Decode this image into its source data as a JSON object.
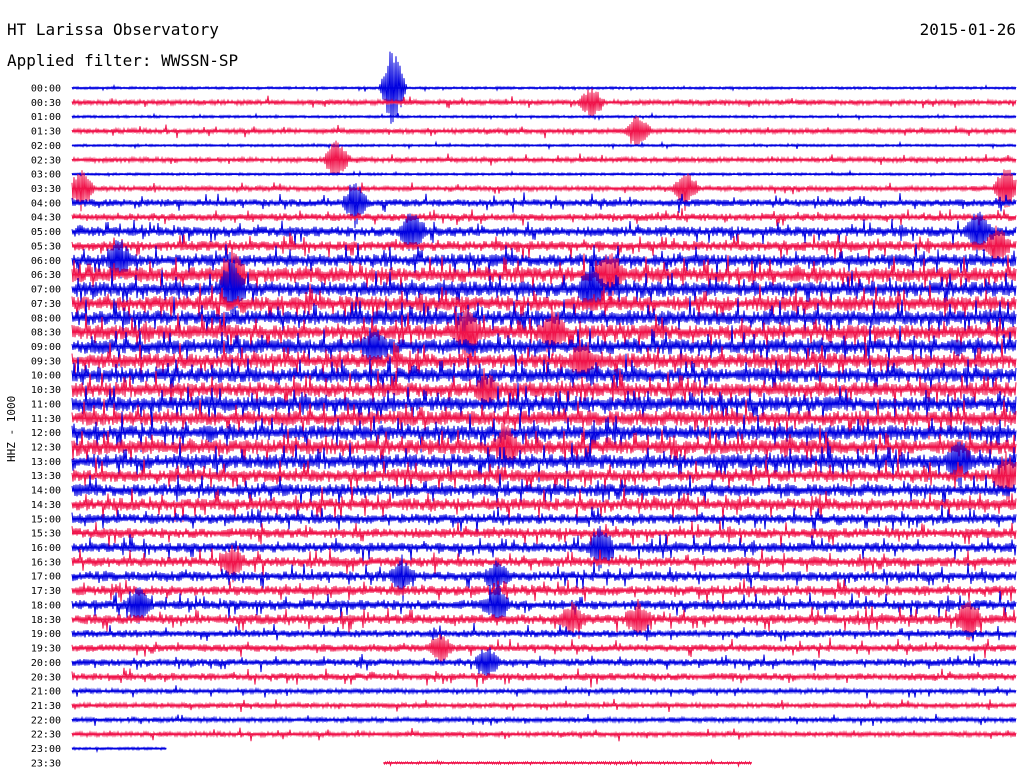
{
  "header": {
    "station": "HT Larissa Observatory",
    "date": "2015-01-26",
    "filter": "Applied filter: WWSSN-SP"
  },
  "chart_data": {
    "type": "line",
    "ylabel": "HHZ - 1000",
    "rows": [
      "00:00",
      "00:30",
      "01:00",
      "01:30",
      "02:00",
      "02:30",
      "03:00",
      "03:30",
      "04:00",
      "04:30",
      "05:00",
      "05:30",
      "06:00",
      "06:30",
      "07:00",
      "07:30",
      "08:00",
      "08:30",
      "09:00",
      "09:30",
      "10:00",
      "10:30",
      "11:00",
      "11:30",
      "12:00",
      "12:30",
      "13:00",
      "13:30",
      "14:00",
      "14:30",
      "15:00",
      "15:30",
      "16:00",
      "16:30",
      "17:00",
      "17:30",
      "18:00",
      "18:30",
      "19:00",
      "19:30",
      "20:00",
      "20:30",
      "21:00",
      "21:30",
      "22:00",
      "22:30",
      "23:00",
      "23:30"
    ],
    "colors": [
      "#0000e0",
      "#f0134a"
    ],
    "noise_level": [
      1,
      2,
      1,
      2,
      1,
      2,
      1,
      2,
      3,
      3,
      4,
      4,
      5,
      6,
      6,
      6,
      6,
      6,
      6,
      6,
      6,
      6,
      6,
      6,
      6,
      6,
      6,
      5,
      5,
      5,
      4,
      4,
      4,
      4,
      4,
      4,
      4,
      4,
      3,
      3,
      3,
      3,
      2,
      2,
      2,
      2,
      1,
      1
    ],
    "events": [
      {
        "row": 0,
        "t": 0.34,
        "amp": 3.0
      },
      {
        "row": 1,
        "t": 0.55,
        "amp": 1.0
      },
      {
        "row": 3,
        "t": 0.6,
        "amp": 1.2
      },
      {
        "row": 5,
        "t": 0.28,
        "amp": 1.4
      },
      {
        "row": 7,
        "t": 0.01,
        "amp": 1.5
      },
      {
        "row": 7,
        "t": 0.65,
        "amp": 1.2
      },
      {
        "row": 7,
        "t": 0.99,
        "amp": 1.6
      },
      {
        "row": 8,
        "t": 0.3,
        "amp": 1.5
      },
      {
        "row": 10,
        "t": 0.36,
        "amp": 1.4
      },
      {
        "row": 10,
        "t": 0.96,
        "amp": 1.5
      },
      {
        "row": 11,
        "t": 0.98,
        "amp": 1.2
      },
      {
        "row": 12,
        "t": 0.05,
        "amp": 1.3
      },
      {
        "row": 13,
        "t": 0.17,
        "amp": 1.8
      },
      {
        "row": 13,
        "t": 0.57,
        "amp": 1.6
      },
      {
        "row": 14,
        "t": 0.17,
        "amp": 2.0
      },
      {
        "row": 14,
        "t": 0.55,
        "amp": 1.6
      },
      {
        "row": 17,
        "t": 0.42,
        "amp": 1.8
      },
      {
        "row": 17,
        "t": 0.51,
        "amp": 1.4
      },
      {
        "row": 18,
        "t": 0.32,
        "amp": 1.2
      },
      {
        "row": 19,
        "t": 0.54,
        "amp": 1.2
      },
      {
        "row": 21,
        "t": 0.44,
        "amp": 1.0
      },
      {
        "row": 25,
        "t": 0.46,
        "amp": 1.2
      },
      {
        "row": 26,
        "t": 0.94,
        "amp": 1.5
      },
      {
        "row": 27,
        "t": 0.99,
        "amp": 1.4
      },
      {
        "row": 32,
        "t": 0.56,
        "amp": 1.4
      },
      {
        "row": 33,
        "t": 0.17,
        "amp": 1.0
      },
      {
        "row": 34,
        "t": 0.35,
        "amp": 1.0
      },
      {
        "row": 34,
        "t": 0.45,
        "amp": 1.0
      },
      {
        "row": 36,
        "t": 0.07,
        "amp": 1.2
      },
      {
        "row": 36,
        "t": 0.45,
        "amp": 1.2
      },
      {
        "row": 37,
        "t": 0.53,
        "amp": 1.0
      },
      {
        "row": 37,
        "t": 0.6,
        "amp": 1.0
      },
      {
        "row": 37,
        "t": 0.95,
        "amp": 1.3
      },
      {
        "row": 39,
        "t": 0.39,
        "amp": 1.0
      },
      {
        "row": 40,
        "t": 0.44,
        "amp": 1.0
      }
    ],
    "partial": [
      {
        "row": 46,
        "t_start": 0.0,
        "t_end": 0.1
      },
      {
        "row": 47,
        "t_start": 0.33,
        "t_end": 0.72
      }
    ]
  }
}
